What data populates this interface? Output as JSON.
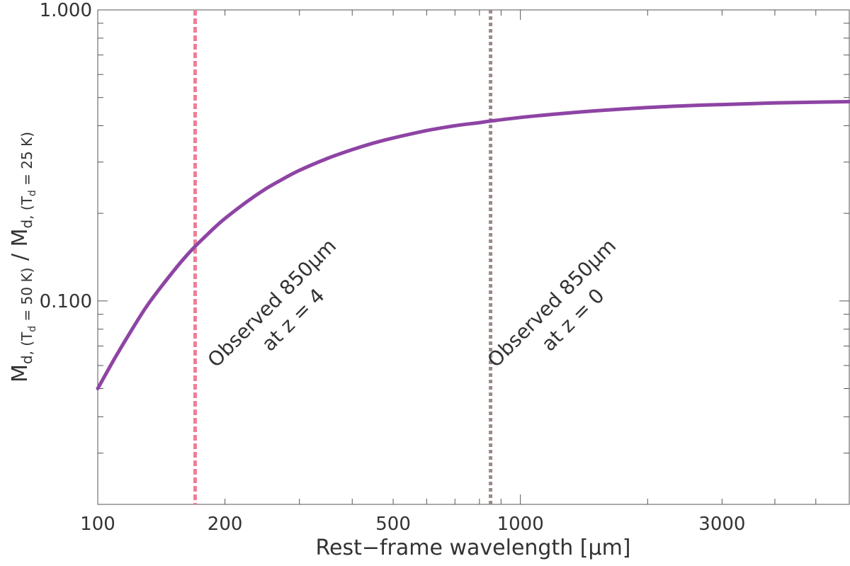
{
  "chart_data": {
    "type": "line",
    "xscale": "log",
    "yscale": "log",
    "xlim": [
      100,
      6000
    ],
    "ylim": [
      0.02,
      1.0
    ],
    "xlabel": "Rest−frame wavelength [μm]",
    "ylabel_parts": {
      "m1": "M",
      "sub1_d": "d, (T",
      "sub1_td": "d",
      "sub1_val": " = 50 K)",
      "slash": " / ",
      "m2": "M",
      "sub2_d": "d, (T",
      "sub2_td": "d",
      "sub2_val": " = 25 K)"
    },
    "x_tick_labels": [
      {
        "value": 100,
        "label": "100"
      },
      {
        "value": 200,
        "label": "200"
      },
      {
        "value": 500,
        "label": "500"
      },
      {
        "value": 1000,
        "label": "1000"
      },
      {
        "value": 3000,
        "label": "3000"
      }
    ],
    "y_tick_labels": [
      {
        "value": 0.1,
        "label": "0.100"
      },
      {
        "value": 1.0,
        "label": "1.000"
      }
    ],
    "series": [
      {
        "color": "#8e44a4",
        "x": [
          100,
          110,
          120,
          130,
          140,
          150,
          160,
          170,
          180,
          190,
          200,
          225,
          250,
          275,
          300,
          350,
          400,
          450,
          500,
          600,
          700,
          800,
          850,
          1000,
          1200,
          1500,
          2000,
          2500,
          3000,
          4000,
          5000,
          6000
        ],
        "y": [
          0.05,
          0.064,
          0.079,
          0.095,
          0.11,
          0.125,
          0.14,
          0.154,
          0.167,
          0.18,
          0.192,
          0.219,
          0.243,
          0.263,
          0.281,
          0.309,
          0.331,
          0.349,
          0.363,
          0.385,
          0.4,
          0.41,
          0.415,
          0.427,
          0.438,
          0.45,
          0.462,
          0.469,
          0.473,
          0.479,
          0.482,
          0.484
        ]
      }
    ],
    "vlines": [
      {
        "x": 170,
        "color": "#f08095",
        "style": "dashed"
      },
      {
        "x": 850,
        "color": "#9c8a86",
        "style": "dotted"
      }
    ],
    "annotations": [
      {
        "line1": "Observed 850μm",
        "line2": "at z = 4",
        "color": "#f08095"
      },
      {
        "line1": "Observed 850μm",
        "line2": "at z = 0",
        "color": "#9c8a86"
      }
    ]
  }
}
